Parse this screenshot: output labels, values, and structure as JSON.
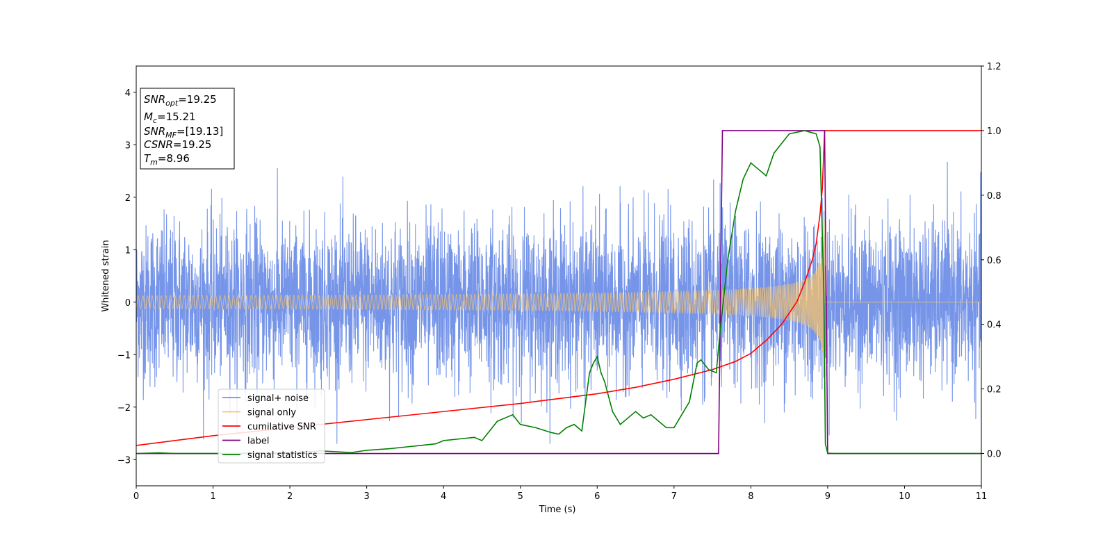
{
  "chart_data": {
    "type": "line",
    "title": "",
    "xlabel": "Time (s)",
    "ylabel": "Whitened strain",
    "xlim": [
      0,
      11
    ],
    "ylim": [
      -3.5,
      4.5
    ],
    "y2lim": [
      -0.1,
      1.2
    ],
    "xticks": [
      "0",
      "1",
      "2",
      "3",
      "4",
      "5",
      "6",
      "7",
      "8",
      "9",
      "10",
      "11"
    ],
    "yticks": [
      "−3",
      "−2",
      "−1",
      "0",
      "1",
      "2",
      "3",
      "4"
    ],
    "y2ticks": [
      "0.0",
      "0.2",
      "0.4",
      "0.6",
      "0.8",
      "1.0",
      "1.2"
    ],
    "legend_position": "lower-left",
    "annotation": {
      "lines": [
        {
          "main": "SNR",
          "sub": "opt",
          "value": "=19.25"
        },
        {
          "main": "M",
          "sub": "c",
          "value": "=15.21"
        },
        {
          "main": "SNR",
          "sub": "MF",
          "value": "=[19.13]"
        },
        {
          "main": "CSNR",
          "sub": "",
          "value": "=19.25"
        },
        {
          "main": "T",
          "sub": "m",
          "value": "=8.96"
        }
      ]
    },
    "series": [
      {
        "name": "signal+ noise",
        "color": "#6f8fe8",
        "axis": "left",
        "kind": "noise",
        "amplitude_range": [
          -2.7,
          2.9
        ],
        "noise_sigma": 0.75
      },
      {
        "name": "signal only",
        "color": "#f5c36b",
        "axis": "left",
        "kind": "chirp",
        "t_merger": 8.96,
        "envelope_start": 0.04,
        "envelope_peak": 2.5
      },
      {
        "name": "cumilative SNR",
        "color": "#ff0000",
        "axis": "right",
        "x": [
          0,
          1,
          2,
          3,
          4,
          5,
          6,
          6.5,
          7,
          7.5,
          7.8,
          8.0,
          8.2,
          8.4,
          8.6,
          8.7,
          8.8,
          8.85,
          8.9,
          8.93,
          8.96,
          11
        ],
        "values": [
          0.025,
          0.055,
          0.08,
          0.105,
          0.13,
          0.155,
          0.185,
          0.205,
          0.23,
          0.26,
          0.285,
          0.31,
          0.35,
          0.4,
          0.47,
          0.53,
          0.6,
          0.65,
          0.74,
          0.82,
          1.0,
          1.0
        ]
      },
      {
        "name": "label",
        "color": "#800080",
        "axis": "right",
        "x": [
          0,
          7.58,
          7.63,
          8.96,
          9.0,
          11
        ],
        "values": [
          0,
          0,
          1,
          1,
          0,
          0
        ]
      },
      {
        "name": "signal statistics",
        "color": "#008000",
        "axis": "right",
        "x": [
          0,
          0.3,
          0.5,
          1,
          1.5,
          2,
          2.4,
          2.8,
          3.0,
          3.3,
          3.5,
          3.7,
          3.9,
          4.0,
          4.2,
          4.4,
          4.5,
          4.7,
          4.8,
          4.9,
          5.0,
          5.2,
          5.4,
          5.5,
          5.6,
          5.7,
          5.8,
          5.9,
          5.95,
          6.0,
          6.05,
          6.1,
          6.2,
          6.3,
          6.4,
          6.5,
          6.6,
          6.7,
          6.8,
          6.9,
          7.0,
          7.1,
          7.2,
          7.3,
          7.35,
          7.45,
          7.55,
          7.6,
          7.7,
          7.8,
          7.85,
          7.9,
          8.0,
          8.1,
          8.2,
          8.3,
          8.4,
          8.5,
          8.7,
          8.85,
          8.9,
          8.95,
          8.97,
          9.0,
          9.1,
          11
        ],
        "values": [
          0,
          0.002,
          0.0,
          0.0,
          0.001,
          0.002,
          0.008,
          0.003,
          0.01,
          0.015,
          0.02,
          0.025,
          0.03,
          0.04,
          0.045,
          0.05,
          0.04,
          0.1,
          0.11,
          0.12,
          0.09,
          0.08,
          0.065,
          0.06,
          0.08,
          0.09,
          0.07,
          0.25,
          0.28,
          0.3,
          0.25,
          0.22,
          0.13,
          0.09,
          0.11,
          0.13,
          0.11,
          0.12,
          0.1,
          0.08,
          0.08,
          0.12,
          0.16,
          0.28,
          0.29,
          0.26,
          0.25,
          0.38,
          0.6,
          0.75,
          0.8,
          0.85,
          0.9,
          0.88,
          0.86,
          0.93,
          0.96,
          0.99,
          1.0,
          0.99,
          0.95,
          0.5,
          0.03,
          0.001,
          0.0,
          0.0
        ]
      }
    ]
  }
}
